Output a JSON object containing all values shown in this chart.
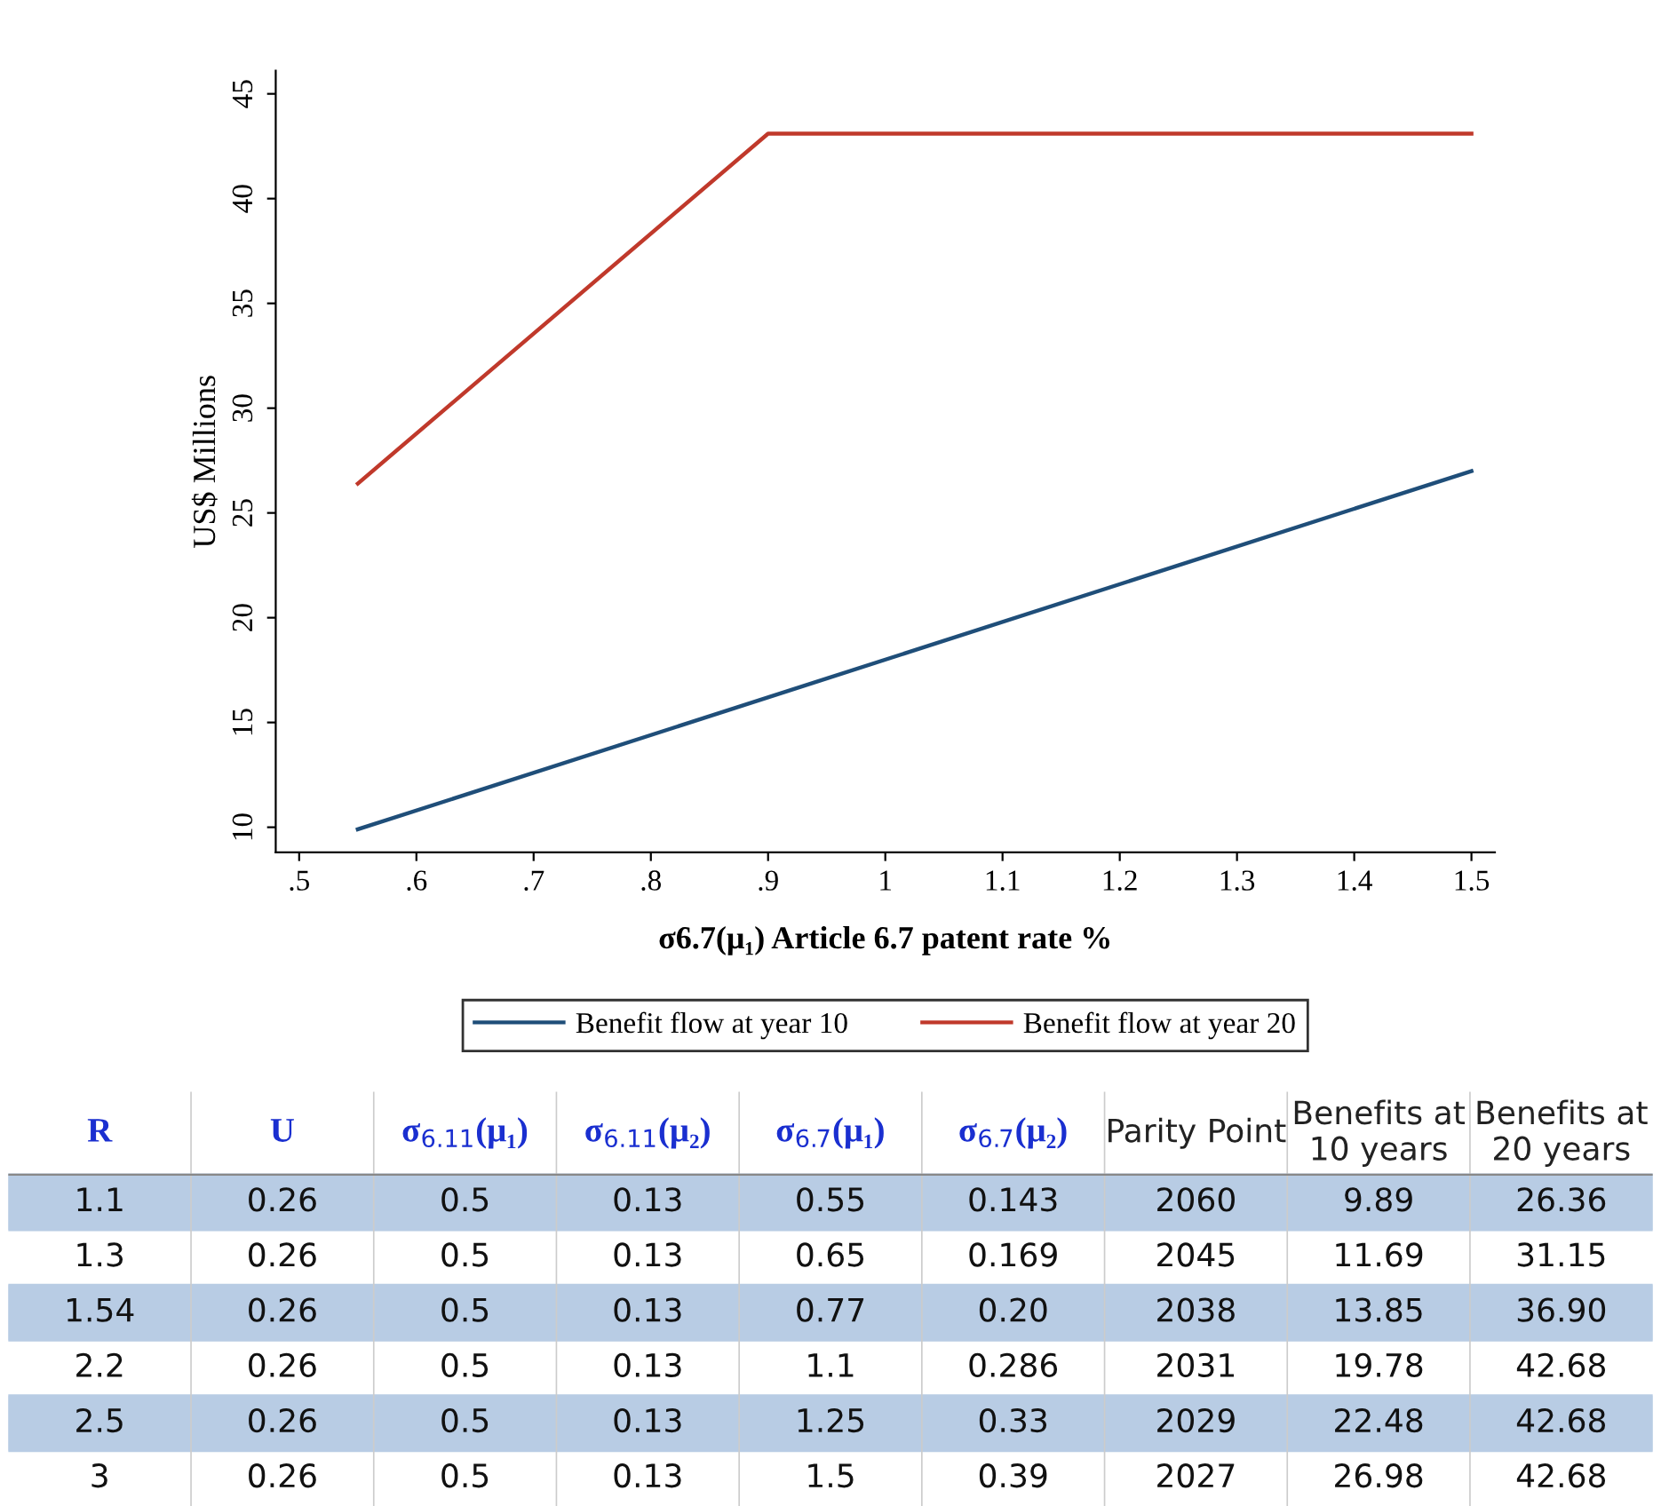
{
  "chart_data": [
    {
      "type": "line",
      "xlabel": "σ6.7(μ₁) Article 6.7 patent rate %",
      "ylabel": "US$ Millions",
      "series": [
        {
          "name": "Benefit flow at year 10",
          "color": "#1f4e79",
          "x": [
            0.55,
            1.5
          ],
          "values": [
            9.9,
            27.0
          ]
        },
        {
          "name": "Benefit flow at year 20",
          "color": "#c0392b",
          "x": [
            0.55,
            0.9,
            1.5
          ],
          "values": [
            26.4,
            43.1,
            43.1
          ]
        }
      ],
      "xlim": [
        0.48,
        1.52
      ],
      "ylim": [
        8.8,
        46.1
      ],
      "xticks": [
        {
          "value": 0.5,
          "label": ".5"
        },
        {
          "value": 0.6,
          "label": ".6"
        },
        {
          "value": 0.7,
          "label": ".7"
        },
        {
          "value": 0.8,
          "label": ".8"
        },
        {
          "value": 0.9,
          "label": ".9"
        },
        1,
        1.1,
        1.2,
        1.3,
        1.4,
        1.5
      ],
      "yticks": [
        10,
        15,
        20,
        25,
        30,
        35,
        40,
        45
      ],
      "grid": false,
      "legend": "bottom",
      "marker": "none",
      "line_style": "solid"
    },
    {
      "type": "other",
      "categories": [
        "R",
        "U",
        "σ$_{6.11}$(μ₁)",
        "σ$_{6.11}$(μ₂)",
        "σ$_{6.7}$(μ₁)",
        "σ$_{6.7}$(μ₂)",
        "Parity Point",
        "Benefits at\n10 years",
        "Benefits at\n20 years"
      ],
      "annotations": [
        "1.1",
        "0.26",
        "0.5",
        "0.13",
        "0.55",
        "0.143",
        "2060",
        "9.89",
        "26.36",
        "1.3",
        "0.26",
        "0.5",
        "0.13",
        "0.65",
        "0.169",
        "2045",
        "11.69",
        "31.15",
        "1.54",
        "0.26",
        "0.5",
        "0.13",
        "0.77",
        "0.20",
        "2038",
        "13.85",
        "36.90",
        "2.2",
        "0.26",
        "0.5",
        "0.13",
        "1.1",
        "0.286",
        "2031",
        "19.78",
        "42.68",
        "2.5",
        "0.26",
        "0.5",
        "0.13",
        "1.25",
        "0.33",
        "2029",
        "22.48",
        "42.68",
        "3",
        "0.26",
        "0.5",
        "0.13",
        "1.5",
        "0.39",
        "2027",
        "26.98",
        "42.68"
      ]
    }
  ]
}
